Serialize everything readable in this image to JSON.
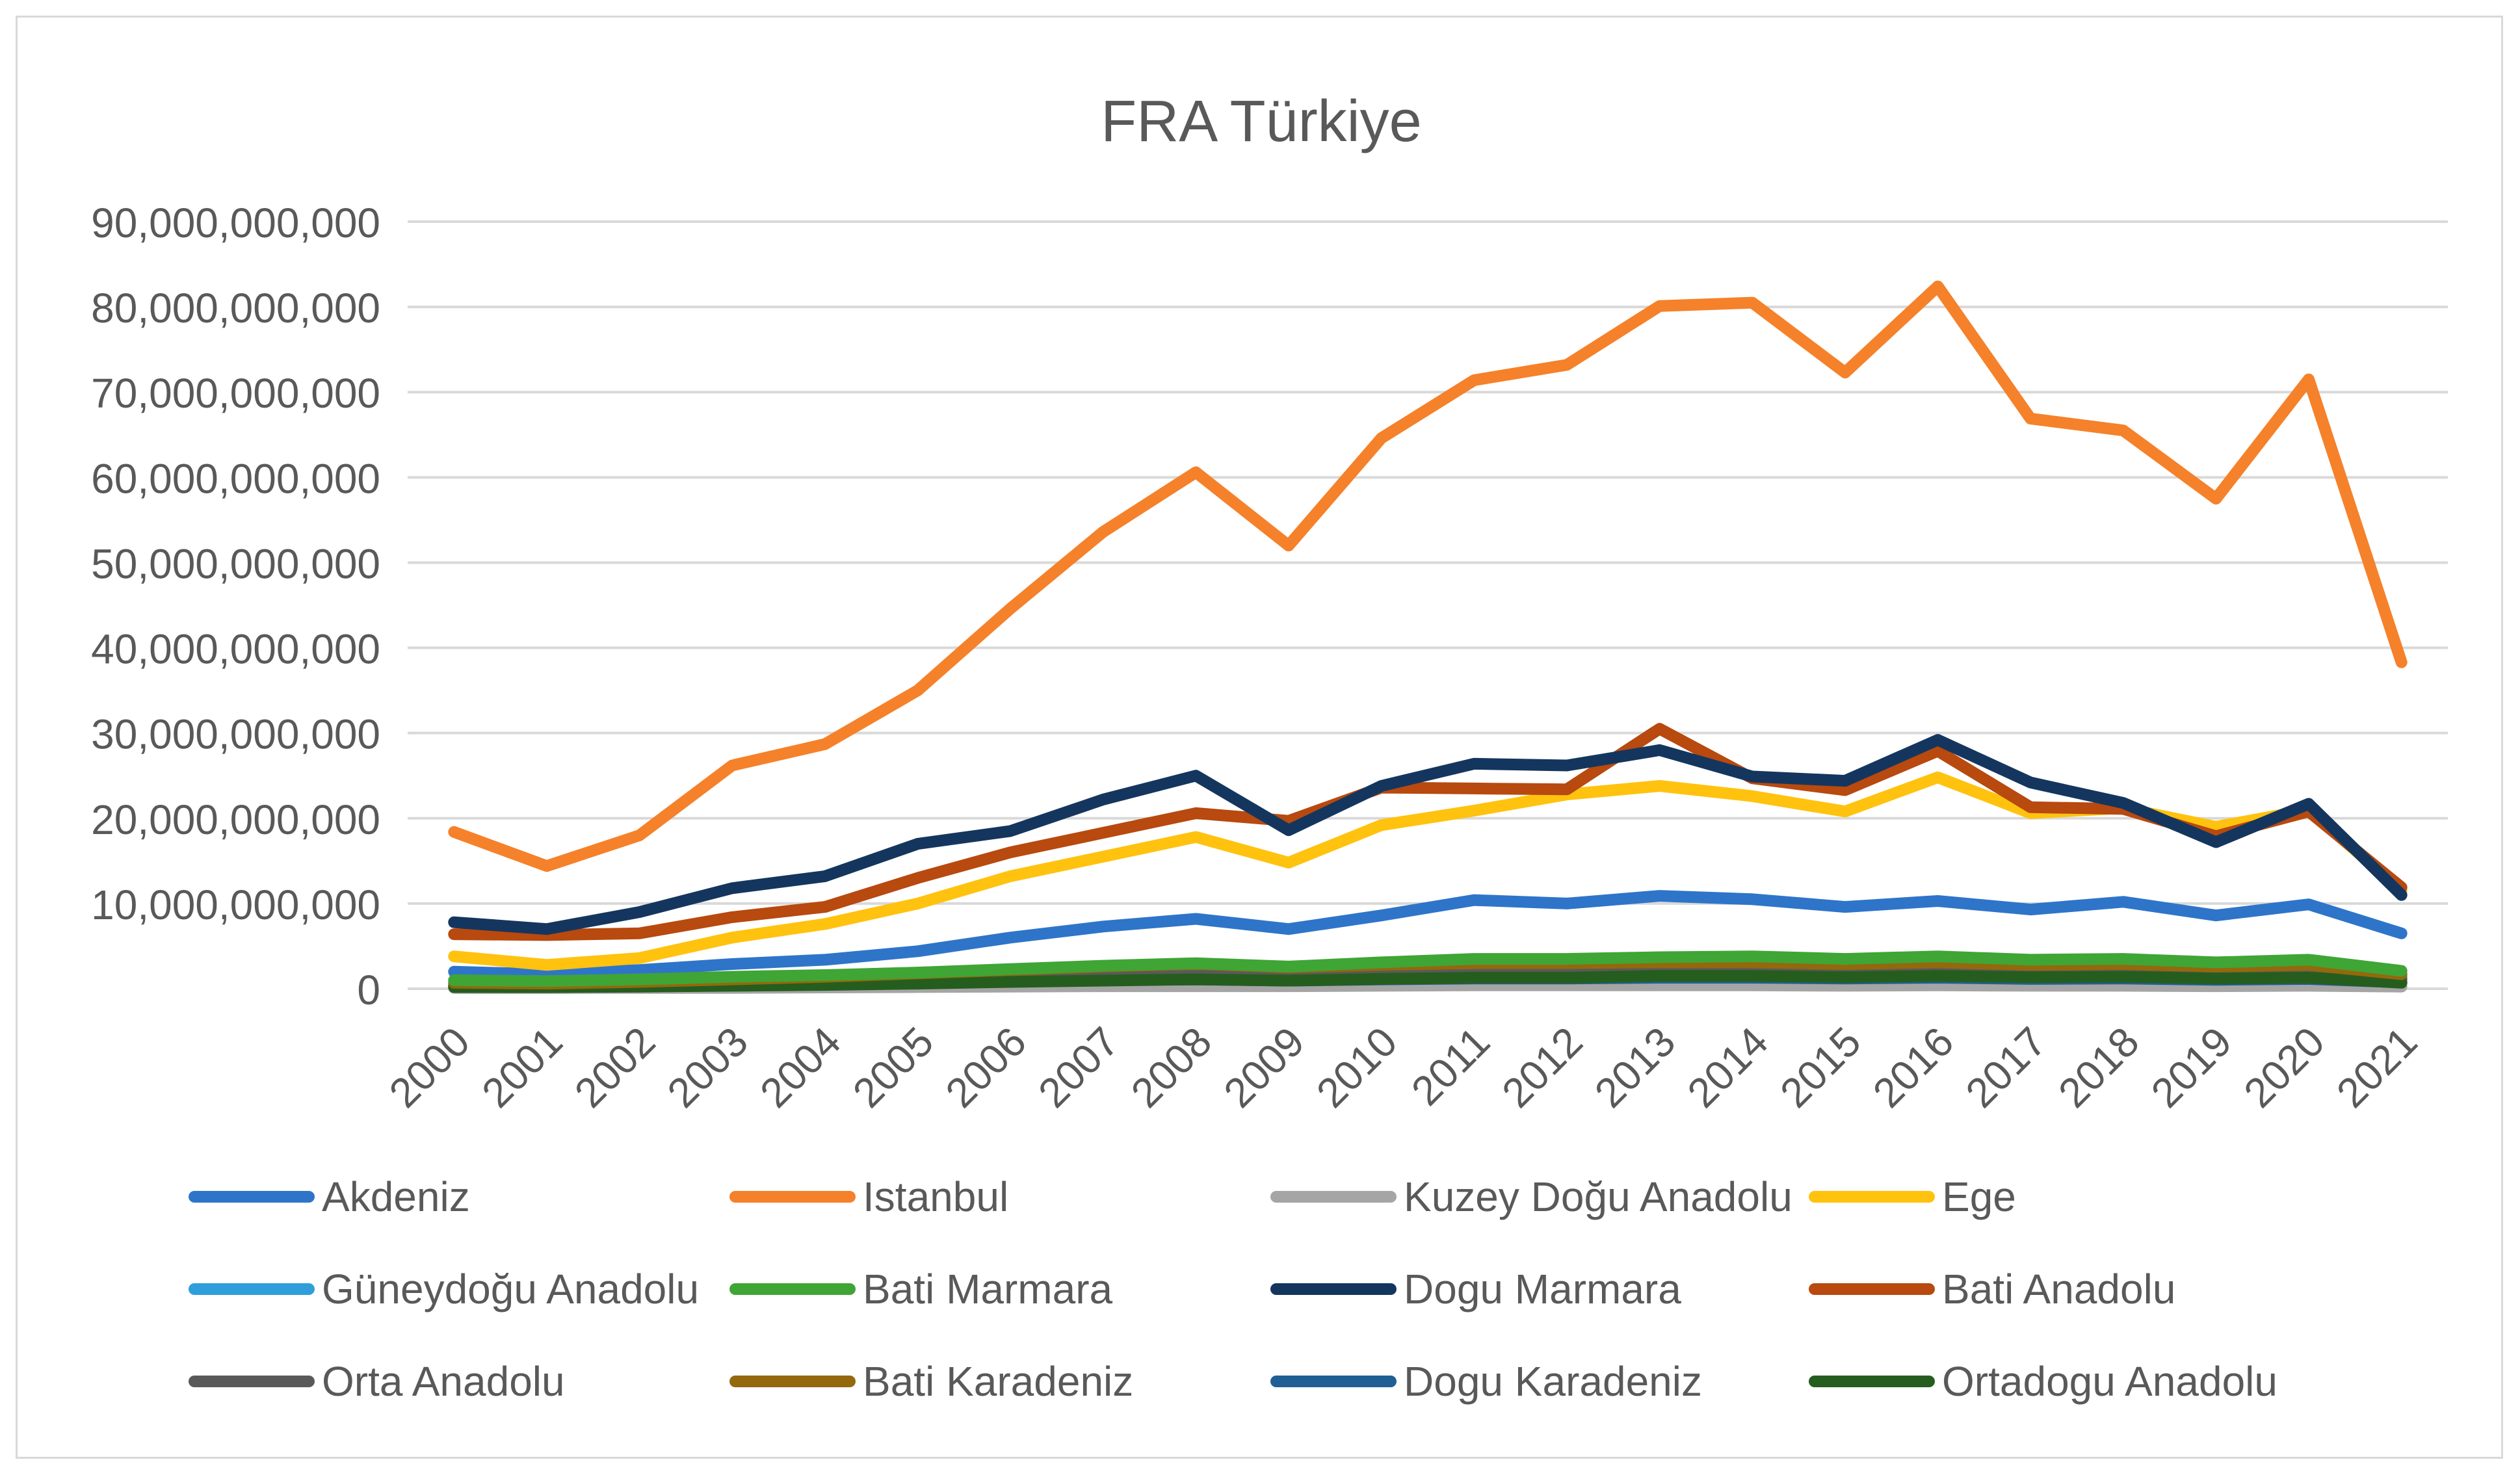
{
  "chart_data": {
    "type": "line",
    "title": "FRA Türkiye",
    "xlabel": "",
    "ylabel": "",
    "ylim": [
      0,
      90000000000
    ],
    "yticks": [
      0,
      10000000000,
      20000000000,
      30000000000,
      40000000000,
      50000000000,
      60000000000,
      70000000000,
      80000000000,
      90000000000
    ],
    "ytick_labels": [
      "0",
      "10,000,000,000",
      "20,000,000,000",
      "30,000,000,000",
      "40,000,000,000",
      "50,000,000,000",
      "60,000,000,000",
      "70,000,000,000",
      "80,000,000,000",
      "90,000,000,000"
    ],
    "grid": true,
    "legend_position": "bottom",
    "categories": [
      "2000",
      "2001",
      "2002",
      "2003",
      "2004",
      "2005",
      "2006",
      "2007",
      "2008",
      "2009",
      "2010",
      "2011",
      "2012",
      "2013",
      "2014",
      "2015",
      "2016",
      "2017",
      "2018",
      "2019",
      "2020",
      "2021"
    ],
    "series": [
      {
        "name": "Akdeniz",
        "color": "#2e75c9",
        "values": [
          2000000000,
          1700000000,
          2200000000,
          2900000000,
          3400000000,
          4400000000,
          6000000000,
          7300000000,
          8200000000,
          7000000000,
          8600000000,
          10400000000,
          10000000000,
          10900000000,
          10500000000,
          9600000000,
          10300000000,
          9300000000,
          10200000000,
          8600000000,
          9900000000,
          6500000000
        ]
      },
      {
        "name": "Istanbul",
        "color": "#f5812a",
        "values": [
          18400000000,
          14400000000,
          18000000000,
          26200000000,
          28700000000,
          35000000000,
          44600000000,
          53600000000,
          60600000000,
          52000000000,
          64600000000,
          71400000000,
          73200000000,
          80100000000,
          80500000000,
          72300000000,
          82400000000,
          66900000000,
          65500000000,
          57500000000,
          71500000000,
          38300000000
        ]
      },
      {
        "name": "Kuzey Doğu Anadolu",
        "color": "#a5a5a5",
        "values": [
          100000000,
          100000000,
          100000000,
          100000000,
          150000000,
          200000000,
          250000000,
          300000000,
          300000000,
          300000000,
          350000000,
          400000000,
          400000000,
          400000000,
          400000000,
          350000000,
          400000000,
          350000000,
          350000000,
          300000000,
          350000000,
          250000000
        ]
      },
      {
        "name": "Ege",
        "color": "#ffc20e",
        "values": [
          3800000000,
          2800000000,
          3600000000,
          6000000000,
          7600000000,
          10000000000,
          13200000000,
          15500000000,
          17800000000,
          14800000000,
          19200000000,
          20900000000,
          22800000000,
          23800000000,
          22600000000,
          20800000000,
          24800000000,
          20600000000,
          21200000000,
          19000000000,
          21000000000,
          11500000000
        ]
      },
      {
        "name": "Güneydoğu Anadolu",
        "color": "#2f9edb",
        "values": [
          500000000,
          400000000,
          500000000,
          700000000,
          800000000,
          1000000000,
          1300000000,
          1600000000,
          1800000000,
          1500000000,
          1800000000,
          2200000000,
          2200000000,
          2400000000,
          2400000000,
          2200000000,
          2400000000,
          2100000000,
          2200000000,
          1900000000,
          2100000000,
          1400000000
        ]
      },
      {
        "name": "Bati Marmara",
        "color": "#3fa535",
        "values": [
          1000000000,
          900000000,
          1100000000,
          1400000000,
          1600000000,
          1900000000,
          2300000000,
          2700000000,
          3000000000,
          2600000000,
          3100000000,
          3500000000,
          3500000000,
          3700000000,
          3800000000,
          3500000000,
          3800000000,
          3400000000,
          3500000000,
          3100000000,
          3400000000,
          2100000000
        ]
      },
      {
        "name": "Dogu Marmara",
        "color": "#14365e",
        "values": [
          7800000000,
          7000000000,
          9000000000,
          11800000000,
          13200000000,
          17000000000,
          18500000000,
          22200000000,
          25000000000,
          18600000000,
          23800000000,
          26400000000,
          26200000000,
          28000000000,
          24900000000,
          24400000000,
          29200000000,
          24200000000,
          21800000000,
          17200000000,
          21700000000,
          11000000000
        ]
      },
      {
        "name": "Bati Anadolu",
        "color": "#b8490f",
        "values": [
          6400000000,
          6300000000,
          6500000000,
          8400000000,
          9600000000,
          13000000000,
          16000000000,
          18300000000,
          20600000000,
          19700000000,
          23600000000,
          23500000000,
          23400000000,
          30500000000,
          24700000000,
          23300000000,
          27900000000,
          21300000000,
          21100000000,
          17900000000,
          20800000000,
          11900000000
        ]
      },
      {
        "name": "Orta Anadolu",
        "color": "#595959",
        "values": [
          400000000,
          350000000,
          450000000,
          600000000,
          700000000,
          900000000,
          1100000000,
          1300000000,
          1500000000,
          1300000000,
          1500000000,
          1700000000,
          1800000000,
          1900000000,
          1900000000,
          1800000000,
          1900000000,
          1700000000,
          1800000000,
          1600000000,
          1700000000,
          1100000000
        ]
      },
      {
        "name": "Bati Karadeniz",
        "color": "#94680c",
        "values": [
          700000000,
          600000000,
          800000000,
          1100000000,
          1400000000,
          1800000000,
          2200000000,
          2600000000,
          2900000000,
          2500000000,
          2800000000,
          3000000000,
          3000000000,
          3100000000,
          3100000000,
          2900000000,
          3100000000,
          2800000000,
          2900000000,
          2600000000,
          2800000000,
          1700000000
        ]
      },
      {
        "name": "Dogu Karadeniz",
        "color": "#1f5f94",
        "values": [
          300000000,
          250000000,
          350000000,
          450000000,
          550000000,
          700000000,
          850000000,
          1000000000,
          1100000000,
          950000000,
          1100000000,
          1200000000,
          1200000000,
          1300000000,
          1300000000,
          1200000000,
          1300000000,
          1150000000,
          1200000000,
          1050000000,
          1150000000,
          750000000
        ]
      },
      {
        "name": "Ortadogu Anadolu",
        "color": "#255d1e",
        "values": [
          200000000,
          180000000,
          250000000,
          350000000,
          450000000,
          600000000,
          800000000,
          950000000,
          1100000000,
          950000000,
          1150000000,
          1300000000,
          1300000000,
          1500000000,
          1500000000,
          1350000000,
          1500000000,
          1350000000,
          1400000000,
          1200000000,
          1300000000,
          700000000
        ]
      }
    ]
  }
}
